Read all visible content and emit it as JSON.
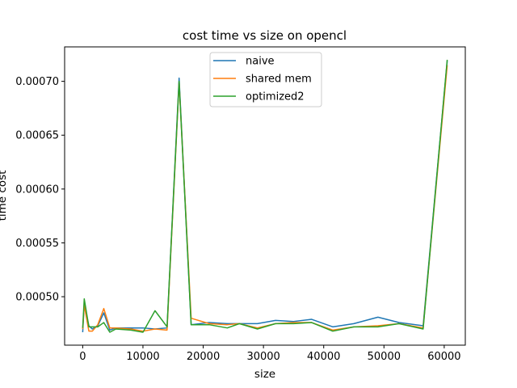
{
  "chart_data": {
    "type": "line",
    "title": "cost time vs size on opencl",
    "xlabel": "size",
    "ylabel": "time cost",
    "xlim": [
      -3000,
      63500
    ],
    "ylim": [
      0.000455,
      0.000732
    ],
    "xticks": [
      0,
      10000,
      20000,
      30000,
      40000,
      50000,
      60000
    ],
    "xtick_labels": [
      "0",
      "10000",
      "20000",
      "30000",
      "40000",
      "50000",
      "60000"
    ],
    "yticks": [
      0.0005,
      0.00055,
      0.0006,
      0.00065,
      0.0007
    ],
    "ytick_labels": [
      "0.00050",
      "0.00055",
      "0.00060",
      "0.00065",
      "0.00070"
    ],
    "grid": false,
    "legend_position": "upper center",
    "x": [
      0,
      256,
      1024,
      1600,
      2500,
      3500,
      4500,
      5500,
      8000,
      10000,
      12000,
      14000,
      16000,
      18000,
      21000,
      24000,
      26000,
      29000,
      32000,
      35000,
      38000,
      41500,
      45000,
      49000,
      52500,
      56500,
      60500
    ],
    "series": [
      {
        "name": "naive",
        "color": "#1f77b4",
        "values": [
          0.000467,
          0.000493,
          0.000473,
          0.00047,
          0.000473,
          0.000485,
          0.000469,
          0.000471,
          0.000471,
          0.000471,
          0.00047,
          0.000471,
          0.000703,
          0.000474,
          0.000476,
          0.000475,
          0.000475,
          0.000475,
          0.000478,
          0.000477,
          0.000479,
          0.000472,
          0.000475,
          0.000481,
          0.000476,
          0.000473,
          0.000719
        ]
      },
      {
        "name": "shared mem",
        "color": "#ff7f0e",
        "values": [
          0.00047,
          0.000492,
          0.000468,
          0.000468,
          0.000474,
          0.000489,
          0.000471,
          0.000471,
          0.00047,
          0.000468,
          0.00047,
          0.000469,
          0.000699,
          0.00048,
          0.000475,
          0.000474,
          0.000475,
          0.000471,
          0.000475,
          0.000476,
          0.000476,
          0.000469,
          0.000472,
          0.000473,
          0.000475,
          0.000471,
          0.000715
        ]
      },
      {
        "name": "optimized2",
        "color": "#2ca02c",
        "values": [
          0.000471,
          0.000498,
          0.000472,
          0.000472,
          0.000472,
          0.000476,
          0.000467,
          0.00047,
          0.000469,
          0.000467,
          0.000487,
          0.000472,
          0.0007,
          0.000474,
          0.000474,
          0.000471,
          0.000475,
          0.00047,
          0.000475,
          0.000475,
          0.000476,
          0.000468,
          0.000472,
          0.000472,
          0.000475,
          0.00047,
          0.00072
        ]
      }
    ]
  }
}
